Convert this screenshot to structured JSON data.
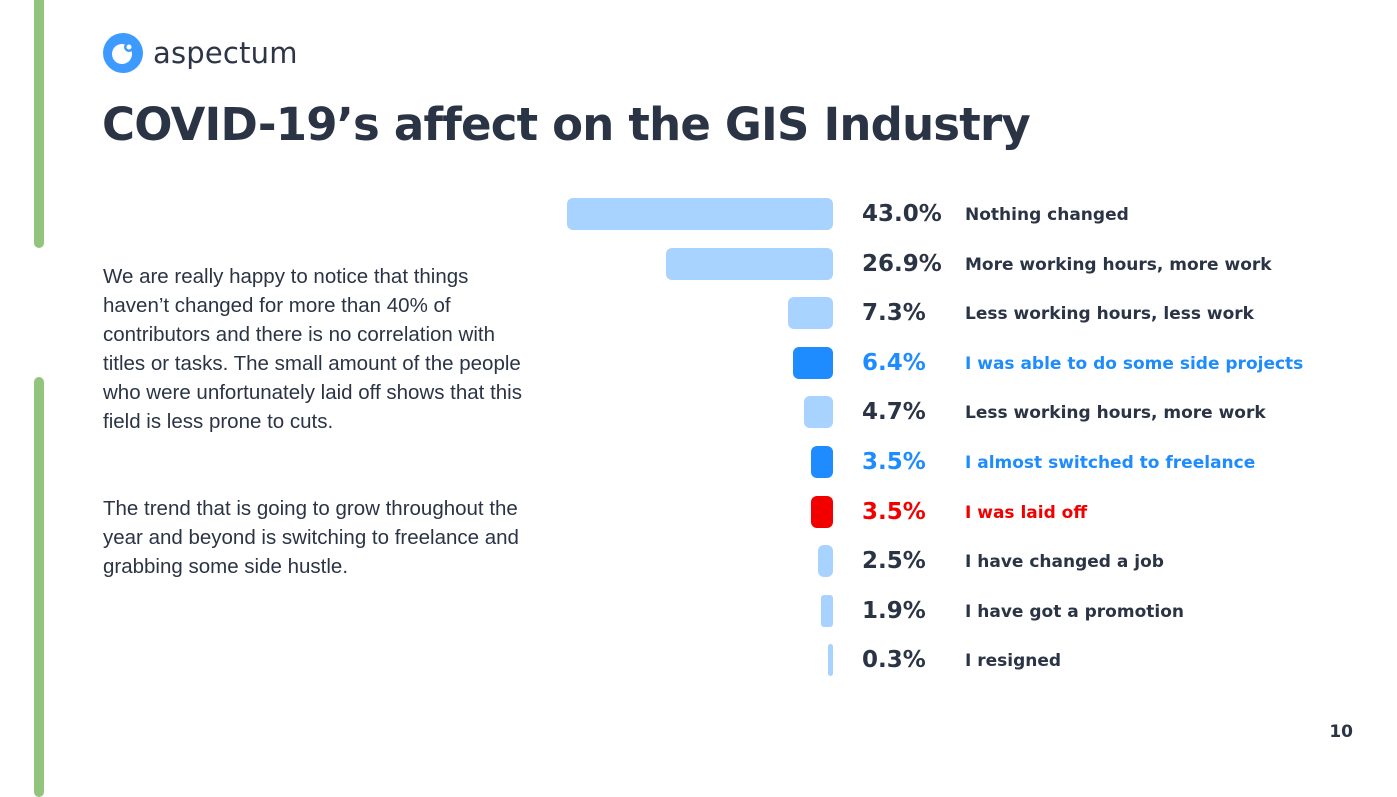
{
  "logo": {
    "text": "aspectum",
    "color": "#3d9bff"
  },
  "title": "COVID-19’s affect on the GIS Industry",
  "paragraphs": [
    "We are really happy to notice that things haven’t changed for more than 40% of contributors and there is no correlation with titles or tasks. The small amount of the people who were unfortunately laid off shows that this field is less prone to cuts.",
    "The trend that is going to grow throughout the year and beyond is switching to freelance and grabbing some side hustle."
  ],
  "page_number": "10",
  "colors": {
    "default_bar": "#a8d2ff",
    "highlight": "#1e8cff",
    "negative": "#f20000",
    "text": "#2b3445",
    "accent_line": "#93c47d"
  },
  "chart_data": {
    "type": "bar",
    "orientation": "horizontal",
    "categories": [
      "Nothing changed",
      "More working hours, more work",
      "Less working hours, less work",
      "I was able to do some side projects",
      "Less working hours, more work",
      "I almost switched to freelance",
      "I was laid off",
      "I have changed a job",
      "I have got a promotion",
      "I resigned"
    ],
    "values": [
      43.0,
      26.9,
      7.3,
      6.4,
      4.7,
      3.5,
      3.5,
      2.5,
      1.9,
      0.3
    ],
    "labels": [
      "43.0%",
      "26.9%",
      "7.3%",
      "6.4%",
      "4.7%",
      "3.5%",
      "3.5%",
      "2.5%",
      "1.9%",
      "0.3%"
    ],
    "highlight": [
      "default",
      "default",
      "default",
      "highlight",
      "default",
      "highlight",
      "negative",
      "default",
      "default",
      "default"
    ],
    "unit": "%",
    "grid": false
  }
}
